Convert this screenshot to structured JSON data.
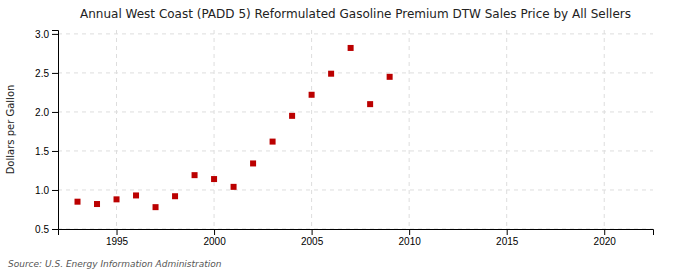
{
  "chart_data": {
    "type": "scatter",
    "title": "Annual West Coast (PADD 5) Reformulated Gasoline Premium DTW Sales Price by All Sellers",
    "ylabel": "Dollars per Gallon",
    "source": "Source: U.S. Energy Information Administration",
    "x": [
      1993,
      1994,
      1995,
      1996,
      1997,
      1998,
      1999,
      2000,
      2001,
      2002,
      2003,
      2004,
      2005,
      2006,
      2007,
      2008,
      2009,
      2010
    ],
    "values": [
      0.85,
      0.82,
      0.88,
      0.93,
      0.78,
      0.92,
      1.19,
      1.14,
      1.04,
      1.34,
      1.62,
      1.95,
      2.22,
      2.49,
      2.82,
      2.1,
      2.45,
      null
    ],
    "color": "#bb0000",
    "marker": "square",
    "grid": true,
    "xlim": [
      1992.0,
      2022.5
    ],
    "ylim": [
      0.5,
      3.05
    ],
    "xticks": [
      1995,
      2000,
      2005,
      2010,
      2015,
      2020
    ],
    "yticks": [
      0.5,
      {
        "value": 1.0,
        "label": "1.0"
      },
      1.5,
      {
        "value": 2.0,
        "label": "2.0"
      },
      2.5,
      {
        "value": 3.0,
        "label": "3.0"
      }
    ]
  }
}
